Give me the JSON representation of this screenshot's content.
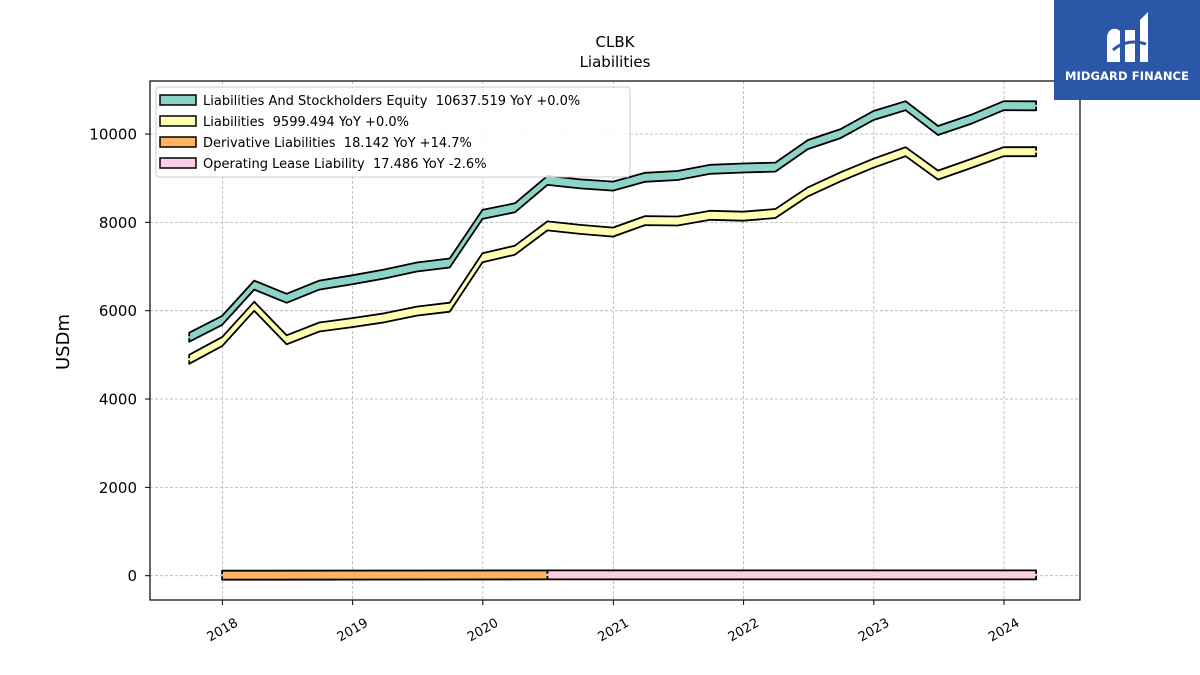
{
  "ticker": "CLBK",
  "brand": {
    "name": "MIDGARD FINANCE",
    "logo_icon": "midgard-logo-icon",
    "color": "#2b57a8"
  },
  "chart_data": {
    "type": "line",
    "title": "CLBK",
    "subtitle": "Liabilities",
    "ylabel": "USDm",
    "xlabel": "",
    "ylim": [
      -550,
      11200
    ],
    "xlim": [
      "2017-06-12",
      "2024-08-01"
    ],
    "yticks": [
      0,
      2000,
      4000,
      6000,
      8000,
      10000
    ],
    "xticks": [
      "2018",
      "2019",
      "2020",
      "2021",
      "2022",
      "2023",
      "2024"
    ],
    "grid": true,
    "legend_position": "top-left",
    "series": [
      {
        "name": "Liabilities And Stockholders Equity",
        "legend_label": "Liabilities And Stockholders Equity  10637.519 YoY +0.0%",
        "color": "#8dd3c7",
        "x": [
          "2017-09-30",
          "2017-12-31",
          "2018-03-31",
          "2018-06-30",
          "2018-09-30",
          "2018-12-31",
          "2019-03-31",
          "2019-06-30",
          "2019-09-30",
          "2019-12-31",
          "2020-03-31",
          "2020-06-30",
          "2020-09-30",
          "2020-12-31",
          "2021-03-31",
          "2021-06-30",
          "2021-09-30",
          "2021-12-31",
          "2022-03-31",
          "2022-06-30",
          "2022-09-30",
          "2022-12-31",
          "2023-03-31",
          "2023-06-30",
          "2023-09-30",
          "2023-12-31",
          "2024-03-31"
        ],
        "y": [
          5400,
          5780,
          6580,
          6280,
          6580,
          6700,
          6830,
          6990,
          7080,
          8180,
          8330,
          8950,
          8870,
          8820,
          9020,
          9060,
          9200,
          9230,
          9250,
          9760,
          10010,
          10420,
          10640,
          10080,
          10330,
          10640,
          10637.519
        ]
      },
      {
        "name": "Liabilities",
        "legend_label": "Liabilities  9599.494 YoY +0.0%",
        "color": "#ffffb3",
        "x": [
          "2017-09-30",
          "2017-12-31",
          "2018-03-31",
          "2018-06-30",
          "2018-09-30",
          "2018-12-31",
          "2019-03-31",
          "2019-06-30",
          "2019-09-30",
          "2019-12-31",
          "2020-03-31",
          "2020-06-30",
          "2020-09-30",
          "2020-12-31",
          "2021-03-31",
          "2021-06-30",
          "2021-09-30",
          "2021-12-31",
          "2022-03-31",
          "2022-06-30",
          "2022-09-30",
          "2022-12-31",
          "2023-03-31",
          "2023-06-30",
          "2023-09-30",
          "2023-12-31",
          "2024-03-31"
        ],
        "y": [
          4900,
          5300,
          6100,
          5340,
          5630,
          5730,
          5840,
          5990,
          6080,
          7200,
          7370,
          7920,
          7840,
          7780,
          8040,
          8030,
          8160,
          8140,
          8200,
          8690,
          9030,
          9340,
          9600,
          9070,
          9330,
          9600,
          9599.494
        ]
      },
      {
        "name": "Derivative Liabilities",
        "legend_label": "Derivative Liabilities  18.142 YoY +14.7%",
        "color": "#fdb462",
        "x": [
          "2017-12-31",
          "2020-06-30"
        ],
        "y": [
          12,
          18.142
        ]
      },
      {
        "name": "Operating Lease Liability",
        "legend_label": "Operating Lease Liability  17.486 YoY -2.6%",
        "color": "#fccde5",
        "x": [
          "2020-06-30",
          "2024-03-31"
        ],
        "y": [
          17.9,
          17.486
        ]
      }
    ]
  }
}
